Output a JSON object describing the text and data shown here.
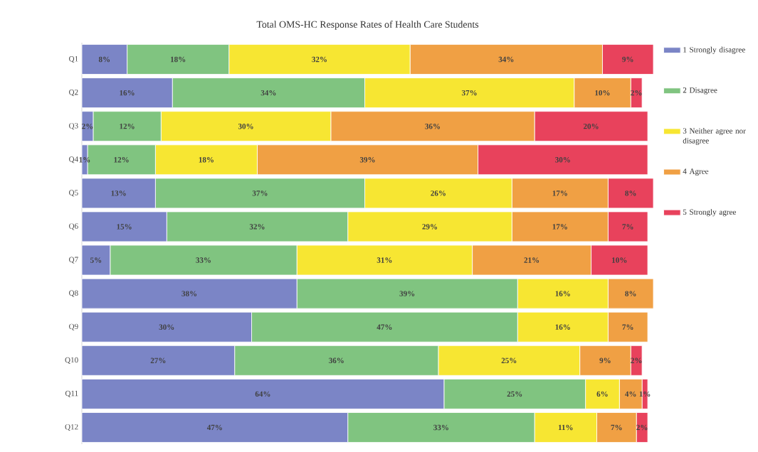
{
  "chart_data": {
    "type": "bar",
    "orientation": "horizontal",
    "stacked": true,
    "title": "Total OMS-HC Response Rates of Health Care Students",
    "categories": [
      "Q1",
      "Q2",
      "Q3",
      "Q4",
      "Q5",
      "Q6",
      "Q7",
      "Q8",
      "Q9",
      "Q10",
      "Q11",
      "Q12"
    ],
    "series": [
      {
        "name": "1 Strongly disagree",
        "color": "#7b85c6",
        "values": [
          8,
          16,
          2,
          1,
          13,
          15,
          5,
          38,
          30,
          27,
          64,
          47
        ],
        "value_labels": [
          "8%",
          "16%",
          "2%",
          "1%",
          "13%",
          "15%",
          "5%",
          "38%",
          "30%",
          "27%",
          "64%",
          "47%"
        ]
      },
      {
        "name": "2 Disagree",
        "color": "#80c480",
        "values": [
          18,
          34,
          12,
          12,
          37,
          32,
          33,
          39,
          47,
          36,
          25,
          33
        ],
        "value_labels": [
          "18%",
          "34%",
          "12%",
          "12%",
          "37%",
          "32%",
          "33%",
          "39%",
          "47%",
          "36%",
          "25%",
          "33%"
        ]
      },
      {
        "name": "3 Neither agree nor disagree",
        "color": "#f7e632",
        "values": [
          32,
          37,
          30,
          18,
          26,
          29,
          31,
          16,
          16,
          25,
          6,
          11
        ],
        "value_labels": [
          "32%",
          "37%",
          "30%",
          "18%",
          "26%",
          "29%",
          "31%",
          "16%",
          "16%",
          "25%",
          "6%",
          "11%"
        ]
      },
      {
        "name": "4 Agree",
        "color": "#f0a044",
        "values": [
          34,
          10,
          36,
          39,
          17,
          17,
          21,
          8,
          7,
          9,
          4,
          7
        ],
        "value_labels": [
          "34%",
          "10%",
          "36%",
          "39%",
          "17%",
          "17%",
          "21%",
          "8%",
          "7%",
          "9%",
          "4%",
          "7%"
        ]
      },
      {
        "name": "5 Strongly agree",
        "color": "#e8425c",
        "values": [
          9,
          2,
          20,
          30,
          8,
          7,
          10,
          0,
          0,
          2,
          1,
          2
        ],
        "value_labels": [
          "9%",
          "2%",
          "20%",
          "30%",
          "8%",
          "7%",
          "10%",
          null,
          null,
          "2%",
          "1%",
          "2%"
        ]
      }
    ],
    "legend": "right",
    "tick_labels": "y"
  }
}
